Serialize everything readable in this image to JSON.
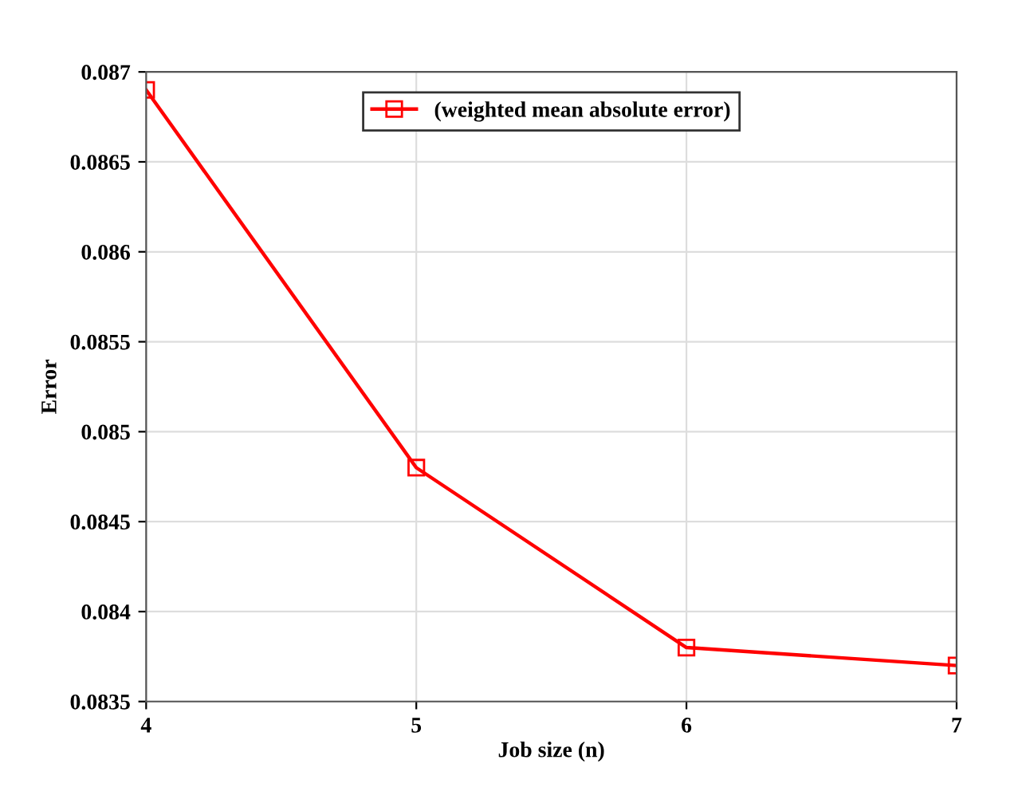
{
  "chart_data": {
    "type": "line",
    "xlabel": "Job size (n)",
    "ylabel": "Error",
    "x": [
      4,
      5,
      6,
      7
    ],
    "series": [
      {
        "name": "(weighted mean absolute error)",
        "color": "#ff0000",
        "values": [
          0.0869,
          0.0848,
          0.0838,
          0.0837
        ]
      }
    ],
    "xlim": [
      4,
      7
    ],
    "xticks": [
      4,
      5,
      6,
      7
    ],
    "ylim": [
      0.0835,
      0.087
    ],
    "yticks": [
      0.0835,
      0.084,
      0.0845,
      0.085,
      0.0855,
      0.086,
      0.0865,
      0.087
    ],
    "grid": true,
    "legend": "top",
    "marker": "square",
    "line_style": "solid"
  }
}
